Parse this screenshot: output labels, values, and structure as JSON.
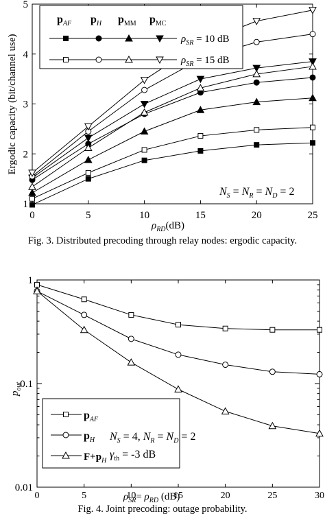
{
  "figure3": {
    "caption": "Fig. 3.   Distributed precoding through relay nodes: ergodic capacity.",
    "ylabel": "Ergodic capacity (bit/channel use)",
    "xlabel": "ρRD(dB)",
    "legend_headers": [
      "pAF",
      "pH",
      "pMM",
      "pMC"
    ],
    "legend_row_labels": [
      "ρSR = 10 dB",
      "ρSR = 15 dB"
    ],
    "annotation": "NS = NR = ND = 2"
  },
  "figure4": {
    "caption": "Fig. 4.   Joint precoding: outage probability.",
    "ylabel": "pout",
    "xlabel": "ρSR= ρRD (dB)",
    "legend_entries": [
      "pAF",
      "pH",
      "F+pH"
    ],
    "annotation_line1": "NS = 4, NR = ND = 2",
    "annotation_line2": "γth = -3 dB"
  },
  "chart_data": [
    {
      "type": "line",
      "title": "",
      "xlabel": "ρRD(dB)",
      "ylabel": "Ergodic capacity (bit/channel use)",
      "xlim": [
        0,
        25
      ],
      "ylim": [
        1,
        5
      ],
      "x_ticks": [
        0,
        5,
        10,
        15,
        20,
        25
      ],
      "y_ticks": [
        1,
        2,
        3,
        4,
        5
      ],
      "x": [
        0,
        5,
        10,
        15,
        20,
        25
      ],
      "grid": false,
      "legend_position": "top-left",
      "series": [
        {
          "name": "pAF, ρSR = 10 dB",
          "marker": "square",
          "filled": true,
          "values": [
            0.98,
            1.5,
            1.87,
            2.06,
            2.18,
            2.22
          ]
        },
        {
          "name": "pH, ρSR = 10 dB",
          "marker": "circle",
          "filled": true,
          "values": [
            1.48,
            2.2,
            2.8,
            3.23,
            3.43,
            3.53
          ]
        },
        {
          "name": "pMM, ρSR = 10 dB",
          "marker": "triangle-up",
          "filled": true,
          "values": [
            1.22,
            1.88,
            2.45,
            2.88,
            3.04,
            3.12
          ]
        },
        {
          "name": "pMC, ρSR = 10 dB",
          "marker": "triangle-down",
          "filled": true,
          "values": [
            1.52,
            2.32,
            3.0,
            3.5,
            3.72,
            3.85
          ]
        },
        {
          "name": "pAF, ρSR = 15 dB",
          "marker": "square",
          "filled": false,
          "values": [
            1.1,
            1.62,
            2.08,
            2.36,
            2.48,
            2.53
          ]
        },
        {
          "name": "pH, ρSR = 15 dB",
          "marker": "circle",
          "filled": false,
          "values": [
            1.55,
            2.45,
            3.28,
            3.9,
            4.24,
            4.4
          ]
        },
        {
          "name": "pMM, ρSR = 15 dB",
          "marker": "triangle-up",
          "filled": false,
          "values": [
            1.34,
            2.12,
            2.83,
            3.32,
            3.6,
            3.75
          ]
        },
        {
          "name": "pMC, ρSR = 15 dB",
          "marker": "triangle-down",
          "filled": false,
          "values": [
            1.62,
            2.55,
            3.48,
            4.22,
            4.66,
            4.88
          ]
        }
      ]
    },
    {
      "type": "line",
      "title": "",
      "xlabel": "ρSR= ρRD (dB)",
      "ylabel": "pout",
      "xlim": [
        0,
        30
      ],
      "ylim": [
        0.01,
        1
      ],
      "y_scale": "log",
      "x_ticks": [
        0,
        5,
        10,
        15,
        20,
        25,
        30
      ],
      "y_ticks": [
        0.01,
        0.1,
        1
      ],
      "y_tick_labels": [
        "0.01",
        "0.1",
        "1"
      ],
      "x": [
        0,
        5,
        10,
        15,
        20,
        25,
        30
      ],
      "grid": false,
      "legend_position": "bottom-left",
      "series": [
        {
          "name": "pAF",
          "marker": "square",
          "filled": false,
          "values": [
            0.9,
            0.65,
            0.46,
            0.37,
            0.34,
            0.33,
            0.33
          ]
        },
        {
          "name": "pH",
          "marker": "circle",
          "filled": false,
          "values": [
            0.78,
            0.46,
            0.27,
            0.19,
            0.152,
            0.13,
            0.123
          ]
        },
        {
          "name": "F+pH",
          "marker": "triangle-up",
          "filled": false,
          "values": [
            0.78,
            0.33,
            0.16,
            0.088,
            0.054,
            0.039,
            0.033
          ]
        }
      ]
    }
  ]
}
